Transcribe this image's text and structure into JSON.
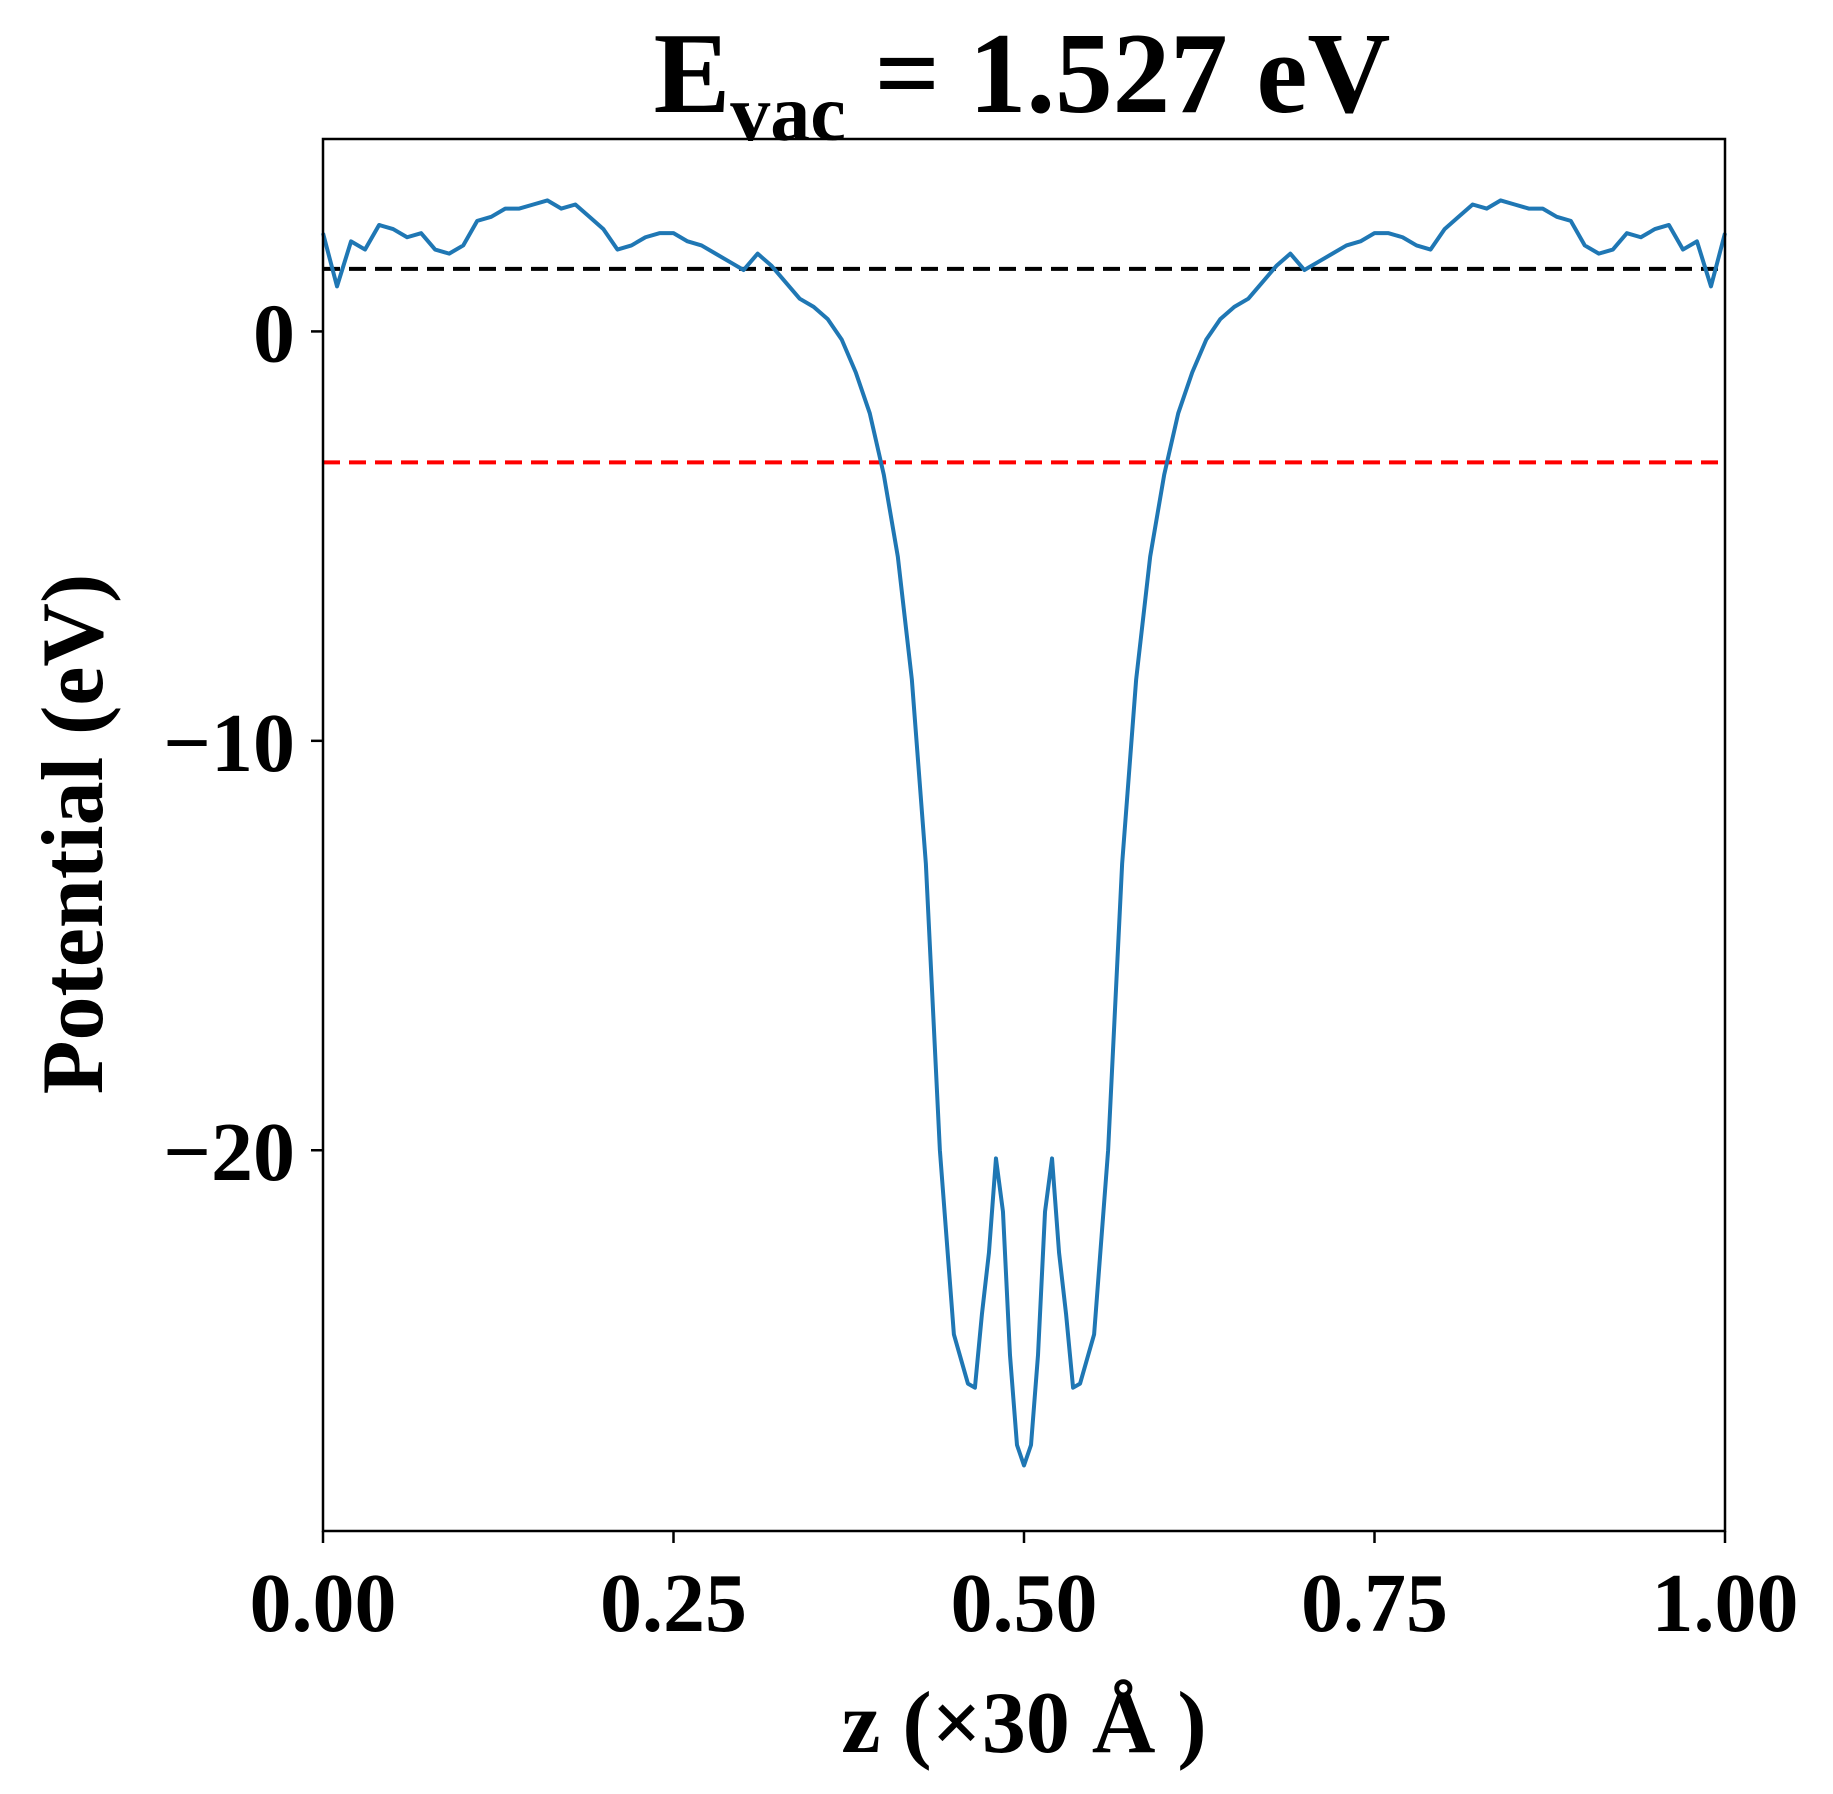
{
  "chart_data": {
    "type": "line",
    "title": {
      "main": "E",
      "subscript": "vac",
      "rest": " = 1.527 eV"
    },
    "x_label": "z (×30 Å )",
    "y_label": "Potential (eV)",
    "xlim": [
      0,
      1
    ],
    "ylim": [
      -29.3,
      4.7
    ],
    "xticks": [
      {
        "value": 0,
        "label": "0.00"
      },
      {
        "value": 0.25,
        "label": "0.25"
      },
      {
        "value": 0.5,
        "label": "0.50"
      },
      {
        "value": 0.75,
        "label": "0.75"
      },
      {
        "value": 1,
        "label": "1.00"
      }
    ],
    "yticks": [
      0,
      {
        "value": -10,
        "label": "−10"
      },
      {
        "value": -20,
        "label": "−20"
      }
    ],
    "reference_lines": [
      {
        "value": 1.527,
        "color": "#000000"
      },
      {
        "value": -3.2,
        "color": "#ff0000"
      }
    ],
    "x": [
      0,
      0.01,
      0.02,
      0.03,
      0.04,
      0.05,
      0.06,
      0.07,
      0.08,
      0.09,
      0.1,
      0.11,
      0.12,
      0.13,
      0.14,
      0.15,
      0.16,
      0.17,
      0.18,
      0.19,
      0.2,
      0.21,
      0.22,
      0.23,
      0.24,
      0.25,
      0.26,
      0.27,
      0.28,
      0.29,
      0.3,
      0.31,
      0.32,
      0.33,
      0.34,
      0.35,
      0.36,
      0.37,
      0.38,
      0.39,
      0.4,
      0.41,
      0.42,
      0.43,
      0.44,
      0.45,
      0.46,
      0.465,
      0.47,
      0.475,
      0.48,
      0.485,
      0.49,
      0.495,
      0.5,
      0.505,
      0.51,
      0.515,
      0.52,
      0.525,
      0.53,
      0.535,
      0.54,
      0.55,
      0.56,
      0.57,
      0.58,
      0.59,
      0.6,
      0.61,
      0.62,
      0.63,
      0.64,
      0.65,
      0.66,
      0.67,
      0.68,
      0.69,
      0.7,
      0.71,
      0.72,
      0.73,
      0.74,
      0.75,
      0.76,
      0.77,
      0.78,
      0.79,
      0.8,
      0.81,
      0.82,
      0.83,
      0.84,
      0.85,
      0.86,
      0.87,
      0.88,
      0.89,
      0.9,
      0.91,
      0.92,
      0.93,
      0.94,
      0.95,
      0.96,
      0.97,
      0.98,
      0.99,
      1.0
    ],
    "series": [
      {
        "color": "#1f77b4",
        "values": [
          2.4,
          1.1,
          2.2,
          2.0,
          2.6,
          2.5,
          2.3,
          2.4,
          2.0,
          1.9,
          2.1,
          2.7,
          2.8,
          3.0,
          3.0,
          3.1,
          3.2,
          3.0,
          3.1,
          2.8,
          2.5,
          2.0,
          2.1,
          2.3,
          2.4,
          2.4,
          2.2,
          2.1,
          1.9,
          1.7,
          1.5,
          1.9,
          1.6,
          1.2,
          0.8,
          0.6,
          0.3,
          -0.2,
          -1.0,
          -2.0,
          -3.5,
          -5.5,
          -8.5,
          -13,
          -20,
          -24.5,
          -25.7,
          -25.8,
          -24.0,
          -22.5,
          -20.2,
          -21.5,
          -25,
          -27.2,
          -27.7,
          -27.2,
          -25,
          -21.5,
          -20.2,
          -22.5,
          -24.0,
          -25.8,
          -25.7,
          -24.5,
          -20,
          -13,
          -8.5,
          -5.5,
          -3.5,
          -2.0,
          -1.0,
          -0.2,
          0.3,
          0.6,
          0.8,
          1.2,
          1.6,
          1.9,
          1.5,
          1.7,
          1.9,
          2.1,
          2.2,
          2.4,
          2.4,
          2.3,
          2.1,
          2.0,
          2.5,
          2.8,
          3.1,
          3.0,
          3.2,
          3.1,
          3.0,
          3.0,
          2.8,
          2.7,
          2.1,
          1.9,
          2.0,
          2.4,
          2.3,
          2.5,
          2.6,
          2.0,
          2.2,
          1.1,
          2.4
        ]
      }
    ]
  }
}
